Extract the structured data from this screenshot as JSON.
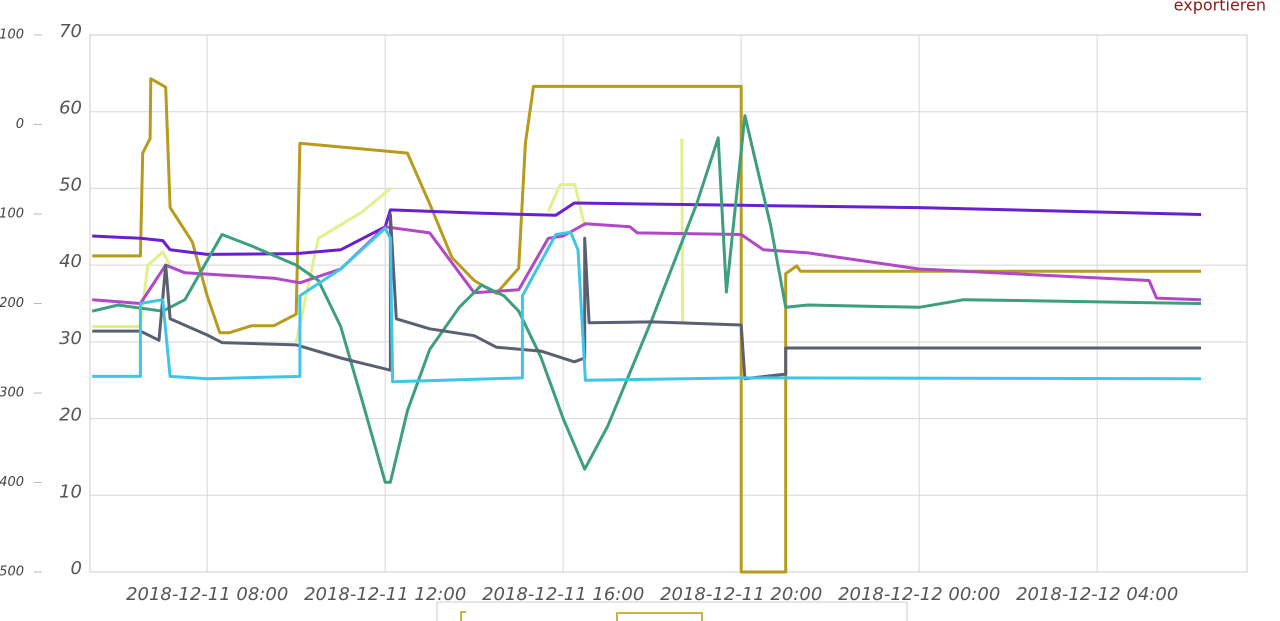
{
  "export_link": "exportieren",
  "chart_data": {
    "type": "line",
    "xlim": [
      "2018-12-11 05:22",
      "2018-12-12 07:22"
    ],
    "xticks": [
      "2018-12-11 08:00",
      "2018-12-11 12:00",
      "2018-12-11 16:00",
      "2018-12-11 20:00",
      "2018-12-12 00:00",
      "2018-12-12 04:00"
    ],
    "ylim": [
      0,
      70
    ],
    "yticks": [
      0,
      10,
      20,
      30,
      40,
      50,
      60,
      70
    ],
    "y2lim": [
      -500,
      100
    ],
    "y2ticks": [
      {
        "value": -500,
        "label": "500"
      },
      {
        "value": -400,
        "label": "400"
      },
      {
        "value": -300,
        "label": "300"
      },
      {
        "value": -200,
        "label": "200"
      },
      {
        "value": -100,
        "label": "100"
      },
      0,
      100
    ],
    "grid": true,
    "series": [
      {
        "color": "#b89a1c",
        "x": [
          "2018-12-11 05:25",
          "2018-12-11 06:30",
          "2018-12-11 06:33",
          "2018-12-11 06:43",
          "2018-12-11 06:44",
          "2018-12-11 07:04",
          "2018-12-11 07:10",
          "2018-12-11 07:40",
          "2018-12-11 08:00",
          "2018-12-11 08:17",
          "2018-12-11 08:30",
          "2018-12-11 09:00",
          "2018-12-11 09:30",
          "2018-12-11 10:00",
          "2018-12-11 10:05",
          "2018-12-11 12:30",
          "2018-12-11 13:00",
          "2018-12-11 13:30",
          "2018-12-11 14:00",
          "2018-12-11 14:30",
          "2018-12-11 15:00",
          "2018-12-11 15:09",
          "2018-12-11 15:20",
          "2018-12-11 20:00",
          "2018-12-11 20:00",
          "2018-12-11 21:00",
          "2018-12-11 21:00",
          "2018-12-11 21:15",
          "2018-12-11 21:20",
          "2018-12-12 06:20"
        ],
        "values": [
          41.2,
          41.2,
          54.6,
          56.5,
          64.3,
          63.2,
          47.5,
          43,
          36,
          31.2,
          31.2,
          32.1,
          32.1,
          33.6,
          55.9,
          54.6,
          48,
          41,
          38,
          36.3,
          39.6,
          55.9,
          63.3,
          63.3,
          0,
          0,
          38.9,
          39.9,
          39.2,
          39.2
        ]
      },
      {
        "color": "#e3ef8c",
        "x": [
          "2018-12-11 05:25",
          "2018-12-11 06:30",
          "2018-12-11 06:40",
          "2018-12-11 07:00",
          "2018-12-11 07:10",
          "2018-12-11 08:00",
          "2018-12-11 10:00",
          "2018-12-11 10:30",
          "2018-12-11 11:30",
          "2018-12-11 12:07",
          "2018-12-11 12:08",
          "2018-12-11 15:40",
          "2018-12-11 15:56",
          "2018-12-11 16:16",
          "2018-12-11 16:29",
          "2018-12-11 17:00",
          "2018-12-11 18:40",
          "2018-12-11 18:41",
          "2018-12-11 18:45"
        ],
        "values": [
          32,
          32,
          40,
          41.7,
          40,
          null,
          30,
          43.5,
          47,
          50,
          null,
          47,
          50.5,
          50.5,
          45,
          null,
          56.5,
          32.5,
          32.5
        ]
      },
      {
        "color": "#6a1fd1",
        "x": [
          "2018-12-11 05:25",
          "2018-12-11 06:30",
          "2018-12-11 07:00",
          "2018-12-11 07:10",
          "2018-12-11 08:00",
          "2018-12-11 10:00",
          "2018-12-11 11:00",
          "2018-12-11 12:00",
          "2018-12-11 12:07",
          "2018-12-11 14:00",
          "2018-12-11 15:50",
          "2018-12-11 16:15",
          "2018-12-11 20:00",
          "2018-12-12 00:00",
          "2018-12-12 06:20"
        ],
        "values": [
          43.8,
          43.5,
          43.2,
          42,
          41.4,
          41.5,
          42,
          45,
          47.2,
          46.8,
          46.5,
          48.1,
          47.8,
          47.5,
          46.6
        ]
      },
      {
        "color": "#b048c8",
        "x": [
          "2018-12-11 05:25",
          "2018-12-11 06:30",
          "2018-12-11 07:04",
          "2018-12-11 07:30",
          "2018-12-11 09:30",
          "2018-12-11 10:05",
          "2018-12-11 11:00",
          "2018-12-11 12:00",
          "2018-12-11 13:00",
          "2018-12-11 14:00",
          "2018-12-11 15:00",
          "2018-12-11 15:40",
          "2018-12-11 16:00",
          "2018-12-11 16:30",
          "2018-12-11 17:30",
          "2018-12-11 17:40",
          "2018-12-11 20:00",
          "2018-12-11 20:30",
          "2018-12-11 21:30",
          "2018-12-12 00:00",
          "2018-12-12 05:10",
          "2018-12-12 05:20",
          "2018-12-12 06:20"
        ],
        "values": [
          35.5,
          35,
          40,
          39,
          38.3,
          37.7,
          39.5,
          45,
          44.2,
          36.4,
          36.8,
          43.5,
          43.8,
          45.4,
          45,
          44.2,
          44,
          42,
          41.6,
          39.5,
          38,
          35.7,
          35.5
        ]
      },
      {
        "color": "#3d9e80",
        "x": [
          "2018-12-11 05:25",
          "2018-12-11 06:00",
          "2018-12-11 07:00",
          "2018-12-11 07:30",
          "2018-12-11 08:20",
          "2018-12-11 09:00",
          "2018-12-11 10:00",
          "2018-12-11 10:30",
          "2018-12-11 11:00",
          "2018-12-11 11:30",
          "2018-12-11 12:00",
          "2018-12-11 12:07",
          "2018-12-11 12:30",
          "2018-12-11 13:00",
          "2018-12-11 13:40",
          "2018-12-11 14:10",
          "2018-12-11 14:40",
          "2018-12-11 15:00",
          "2018-12-11 15:30",
          "2018-12-11 16:00",
          "2018-12-11 16:29",
          "2018-12-11 17:00",
          "2018-12-11 18:00",
          "2018-12-11 19:00",
          "2018-12-11 19:29",
          "2018-12-11 19:40",
          "2018-12-11 20:05",
          "2018-12-11 20:40",
          "2018-12-11 21:00",
          "2018-12-11 21:30",
          "2018-12-12 00:00",
          "2018-12-12 01:00",
          "2018-12-12 06:20"
        ],
        "values": [
          34,
          34.8,
          34,
          35.5,
          44,
          42.5,
          40,
          38,
          32,
          22,
          11.7,
          11.7,
          21,
          29,
          34.5,
          37.4,
          36,
          34,
          28,
          20,
          13.4,
          19,
          33,
          48,
          56.6,
          36.5,
          59.5,
          45,
          34.5,
          34.8,
          34.5,
          35.5,
          35
        ]
      },
      {
        "color": "#5a6070",
        "x": [
          "2018-12-11 05:25",
          "2018-12-11 06:30",
          "2018-12-11 06:55",
          "2018-12-11 07:04",
          "2018-12-11 07:10",
          "2018-12-11 08:00",
          "2018-12-11 08:20",
          "2018-12-11 10:00",
          "2018-12-11 11:00",
          "2018-12-11 12:07",
          "2018-12-11 12:07",
          "2018-12-11 12:15",
          "2018-12-11 13:00",
          "2018-12-11 14:00",
          "2018-12-11 14:30",
          "2018-12-11 15:30",
          "2018-12-11 16:15",
          "2018-12-11 16:29",
          "2018-12-11 16:29",
          "2018-12-11 16:35",
          "2018-12-11 18:00",
          "2018-12-11 20:00",
          "2018-12-11 20:05",
          "2018-12-11 21:00",
          "2018-12-11 21:00",
          "2018-12-12 06:20"
        ],
        "values": [
          31.4,
          31.4,
          30.2,
          40,
          33,
          30.9,
          29.9,
          29.6,
          27.9,
          26.3,
          46.6,
          33,
          31.7,
          30.8,
          29.3,
          28.8,
          27.4,
          27.9,
          43.5,
          32.5,
          32.6,
          32.2,
          25.2,
          25.8,
          29.2,
          29.2
        ]
      },
      {
        "color": "#3fc6e6",
        "x": [
          "2018-12-11 05:25",
          "2018-12-11 06:30",
          "2018-12-11 06:30",
          "2018-12-11 07:00",
          "2018-12-11 07:10",
          "2018-12-11 08:00",
          "2018-12-11 10:05",
          "2018-12-11 10:05",
          "2018-12-11 11:00",
          "2018-12-11 12:00",
          "2018-12-11 12:07",
          "2018-12-11 12:10",
          "2018-12-11 15:05",
          "2018-12-11 15:05",
          "2018-12-11 15:50",
          "2018-12-11 16:10",
          "2018-12-11 16:20",
          "2018-12-11 16:30",
          "2018-12-11 20:00",
          "2018-12-12 06:20"
        ],
        "values": [
          25.5,
          25.5,
          35,
          35.5,
          25.5,
          25.2,
          25.5,
          36,
          39.5,
          44.8,
          43.5,
          24.8,
          25.3,
          36,
          44,
          44.3,
          42,
          25,
          25.3,
          25.2
        ]
      }
    ]
  }
}
